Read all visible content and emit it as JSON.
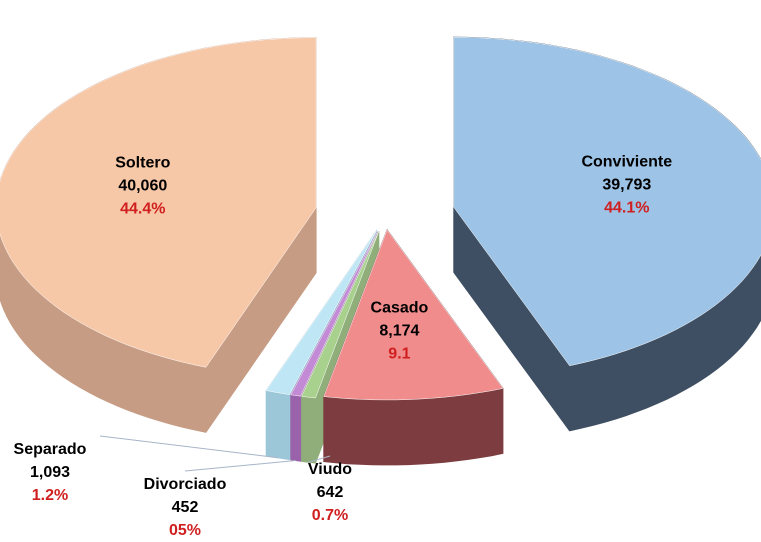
{
  "chart_data": {
    "type": "pie3d",
    "categories": [
      "Conviviente",
      "Casado",
      "Viudo",
      "Divorciado",
      "Separado",
      "Soltero"
    ],
    "values": [
      39793,
      8174,
      642,
      452,
      1093,
      40060
    ],
    "value_labels": [
      "39,793",
      "8,174",
      "642",
      "452",
      "1,093",
      "40,060"
    ],
    "percent_labels": [
      "44.1%",
      "9.1",
      "0.7%",
      "05%",
      "1.2%",
      "44.4%"
    ],
    "colors": [
      "#9dc3e6",
      "#f08c8c",
      "#a9d18e",
      "#c38ad6",
      "#bfe6f5",
      "#f7c8a8"
    ],
    "side_colors": [
      "#3e4f63",
      "#7d3d40",
      "#8fae7a",
      "#9a62aa",
      "#9cc7d8",
      "#c79c84"
    ]
  }
}
